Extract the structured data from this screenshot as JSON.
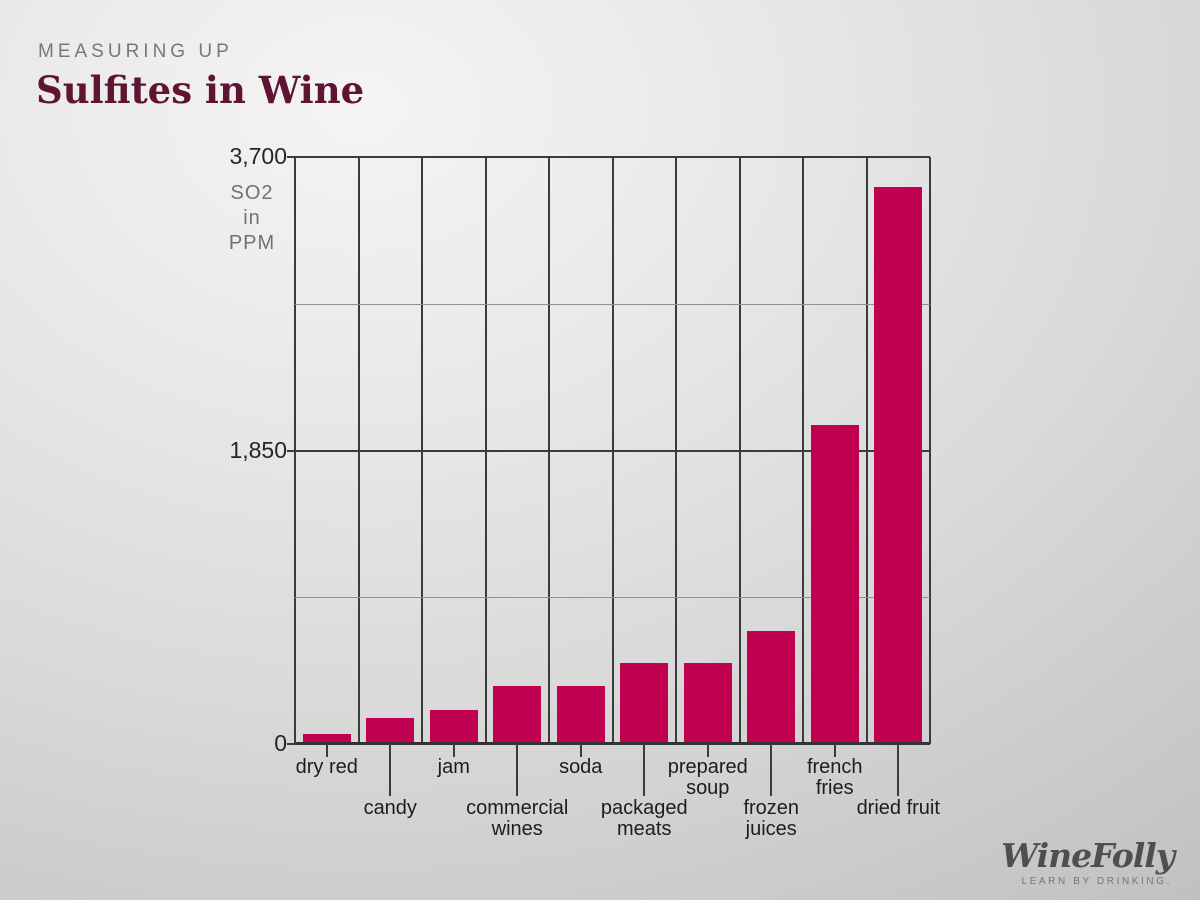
{
  "header": {
    "kicker": "MEASURING UP",
    "title": "Sulfites in Wine"
  },
  "chart_data": {
    "type": "bar",
    "title": "Sulfites in Wine",
    "ylabel": "SO2 in PPM",
    "unit_label_lines": "SO2\nin\nPPM",
    "categories": [
      "dry red",
      "candy",
      "jam",
      "commercial wines",
      "soda",
      "packaged meats",
      "prepared soup",
      "frozen juices",
      "french fries",
      "dried fruit"
    ],
    "category_label_lines": [
      [
        "dry red"
      ],
      [
        "candy"
      ],
      [
        "jam"
      ],
      [
        "commercial",
        "wines"
      ],
      [
        "soda"
      ],
      [
        "packaged",
        "meats"
      ],
      [
        "prepared",
        "soup"
      ],
      [
        "frozen",
        "juices"
      ],
      [
        "french",
        "fries"
      ],
      [
        "dried fruit"
      ]
    ],
    "values": [
      50,
      150,
      200,
      350,
      350,
      500,
      500,
      700,
      2000,
      3500
    ],
    "ylim": [
      0,
      3700
    ],
    "yticks": [
      {
        "value": 0,
        "label": "0"
      },
      {
        "value": 1850,
        "label": "1,850"
      },
      {
        "value": 3700,
        "label": "3,700"
      }
    ],
    "minor_gridlines": [
      925,
      2775
    ],
    "grid": true,
    "legend": "none",
    "bar_color": "#c00051",
    "grid_color": "#3b3b3b",
    "minor_grid_color": "#909090"
  },
  "branding": {
    "logo": "WineFolly",
    "tagline": "LEARN BY DRINKING."
  },
  "colors": {
    "accent_bar": "#c00051",
    "title_maroon": "#5e1433",
    "kicker_gray": "#77787a",
    "grid_dark": "#3b3b3b",
    "background_light": "#f5f4f3",
    "background_dark": "#b4b3b5"
  }
}
